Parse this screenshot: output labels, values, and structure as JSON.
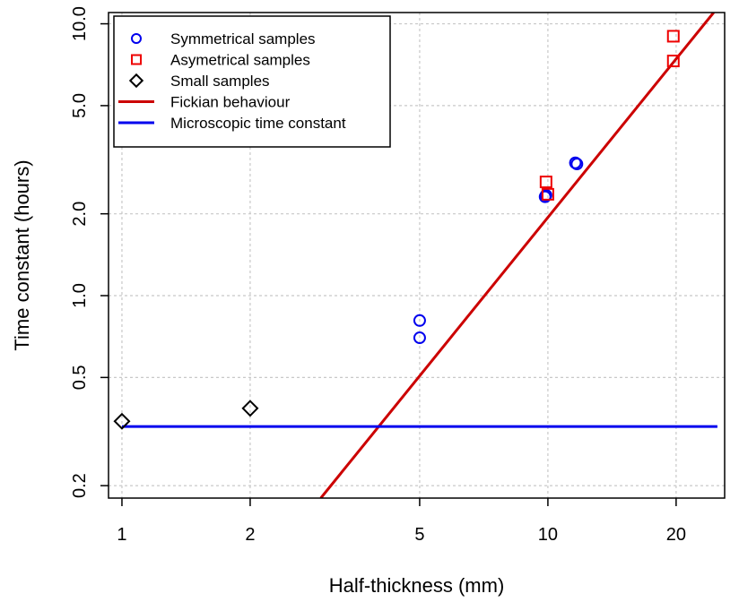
{
  "chart_data": {
    "type": "scatter",
    "xlabel": "Half-thickness (mm)",
    "ylabel": "Time constant (hours)",
    "x_scale": "log",
    "y_scale": "log",
    "xlim": [
      0.93,
      26
    ],
    "ylim": [
      0.18,
      11
    ],
    "x_ticks": [
      {
        "value": 1,
        "label": "1"
      },
      {
        "value": 2,
        "label": "2"
      },
      {
        "value": 5,
        "label": "5"
      },
      {
        "value": 10,
        "label": "10"
      },
      {
        "value": 20,
        "label": "20"
      }
    ],
    "y_ticks": [
      {
        "value": 0.2,
        "label": "0.2"
      },
      {
        "value": 0.5,
        "label": "0.5"
      },
      {
        "value": 1,
        "label": "1.0"
      },
      {
        "value": 2,
        "label": "2.0"
      },
      {
        "value": 5,
        "label": "5.0"
      },
      {
        "value": 10,
        "label": "10.0"
      }
    ],
    "grid": true,
    "legend_position": "top-left",
    "series": [
      {
        "name": "Symmetrical samples",
        "kind": "points",
        "marker": "circle",
        "color": "#0000ee",
        "points": [
          [
            5,
            0.81
          ],
          [
            5,
            0.7
          ],
          [
            9.85,
            2.31
          ],
          [
            9.9,
            2.34
          ],
          [
            11.6,
            3.08
          ],
          [
            11.7,
            3.05
          ]
        ]
      },
      {
        "name": "Asymetrical samples",
        "kind": "points",
        "marker": "square",
        "color": "#ee0000",
        "points": [
          [
            9.9,
            2.62
          ],
          [
            10.0,
            2.36
          ],
          [
            19.7,
            9.0
          ],
          [
            19.7,
            7.3
          ]
        ]
      },
      {
        "name": "Small samples",
        "kind": "points",
        "marker": "diamond",
        "color": "#000000",
        "points": [
          [
            1,
            0.345
          ],
          [
            2,
            0.385
          ]
        ]
      },
      {
        "name": "Fickian behaviour",
        "kind": "line",
        "color": "#cc0000",
        "points": [
          [
            2.93,
            0.18
          ],
          [
            24.5,
            11
          ]
        ]
      },
      {
        "name": "Microscopic time constant",
        "kind": "line",
        "color": "#0000ee",
        "points": [
          [
            1,
            0.33
          ],
          [
            25,
            0.33
          ]
        ]
      }
    ]
  }
}
